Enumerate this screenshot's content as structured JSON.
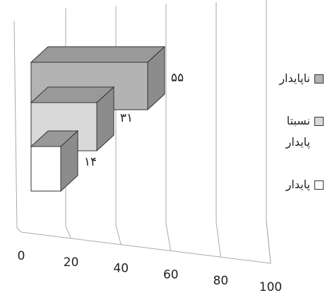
{
  "chart_data": {
    "type": "bar3d",
    "categories": [
      "ناپایدار",
      "نسبتا پایدار",
      "پایدار"
    ],
    "values": [
      55,
      31,
      14
    ],
    "value_labels": [
      "۵۵",
      "۳۱",
      "۱۴"
    ],
    "colors": [
      "#b3b3b3",
      "#d9d9d9",
      "#ffffff"
    ],
    "xlim": [
      0,
      100
    ],
    "xticks": [
      0,
      20,
      40,
      60,
      80,
      100
    ],
    "grid": true
  }
}
